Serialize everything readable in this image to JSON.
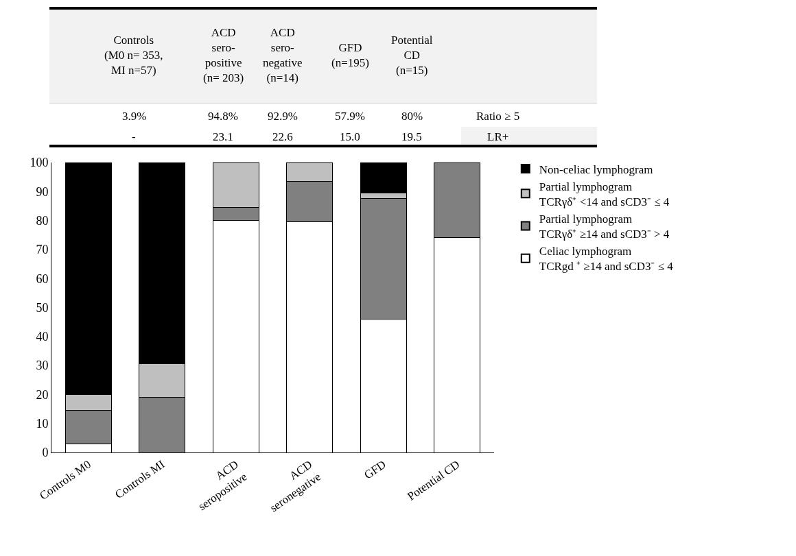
{
  "chart_data": {
    "type": "bar",
    "stacked": true,
    "categories": [
      "Controls M0",
      "Controls MI",
      "ACD\nseropositive",
      "ACD\nseronegative",
      "GFD",
      "Potential CD"
    ],
    "series": [
      {
        "name": "Celiac lymphogram\nTCRgd ⁺ ≥14 and sCD3⁻ ≤ 4",
        "color": "#ffffff",
        "values": [
          3,
          0,
          80,
          79.5,
          46,
          74
        ]
      },
      {
        "name": "Partial lymphogram\nTCRγδ⁺ ≥14 and sCD3⁻ > 4",
        "color": "#808080",
        "values": [
          11.5,
          19,
          4.5,
          14,
          41.5,
          26
        ]
      },
      {
        "name": "Partial lymphogram\nTCRγδ⁺ <14 and sCD3⁻ ≤ 4",
        "color": "#bfbfbf",
        "values": [
          5.5,
          11.5,
          15.5,
          6.5,
          2,
          0
        ]
      },
      {
        "name": "Non-celiac lymphogram",
        "color": "#000000",
        "values": [
          80,
          69.5,
          0,
          0,
          10.5,
          0
        ]
      }
    ],
    "ylim": [
      0,
      100
    ],
    "yticks": [
      0,
      10,
      20,
      30,
      40,
      50,
      60,
      70,
      80,
      90,
      100
    ],
    "legend": "right",
    "annotations": [
      "Controls\n(M0 n= 353,\nMI n=57)",
      "ACD\nsero-\npositive\n(n= 203)",
      "ACD\nsero-\nnegative\n(n=14)",
      "GFD\n(n=195)",
      "Potential\nCD\n(n=15)",
      "3.9%",
      "94.8%",
      "92.9%",
      "57.9%",
      "80%",
      "Ratio ≥ 5",
      "-",
      "23.1",
      "22.6",
      "15.0",
      "19.5",
      "LR+"
    ]
  }
}
